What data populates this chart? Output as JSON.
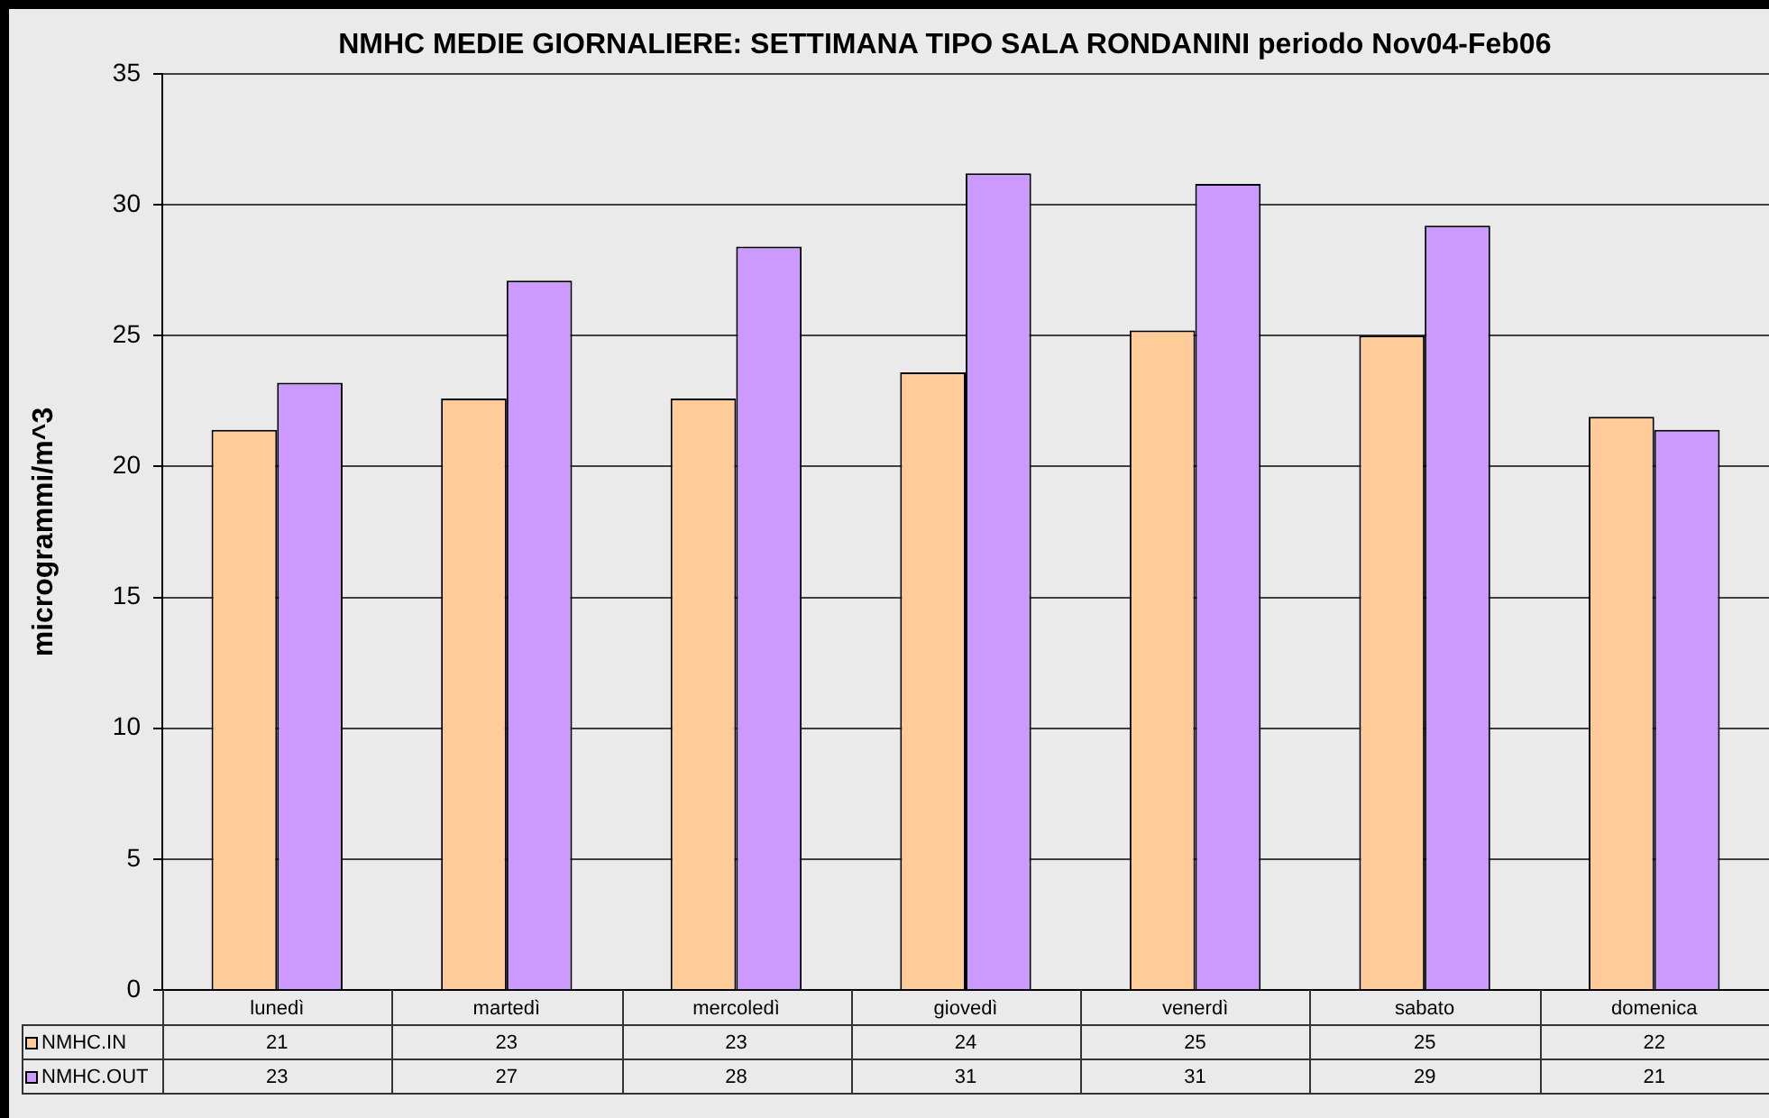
{
  "chart_data": {
    "type": "bar",
    "title": "NMHC MEDIE GIORNALIERE: SETTIMANA TIPO SALA RONDANINI periodo Nov04-Feb06",
    "ylabel": "microgrammi/m^3",
    "categories": [
      "lunedì",
      "martedì",
      "mercoledì",
      "giovedì",
      "venerdì",
      "sabato",
      "domenica"
    ],
    "series": [
      {
        "name": "NMHC.IN",
        "color": "#ffcc99",
        "values": [
          21.4,
          22.6,
          22.6,
          23.6,
          25.2,
          25.0,
          21.9
        ],
        "value_labels": [
          "21",
          "23",
          "23",
          "24",
          "25",
          "25",
          "22"
        ]
      },
      {
        "name": "NMHC.OUT",
        "color": "#cc99ff",
        "values": [
          23.2,
          27.1,
          28.4,
          31.2,
          30.8,
          29.2,
          21.4
        ],
        "value_labels": [
          "23",
          "27",
          "28",
          "31",
          "31",
          "29",
          "21"
        ]
      }
    ],
    "ylim": [
      0,
      35
    ],
    "yticks": [
      0,
      5,
      10,
      15,
      20,
      25,
      30,
      35
    ],
    "grid": "y",
    "legend": "bottom left"
  }
}
